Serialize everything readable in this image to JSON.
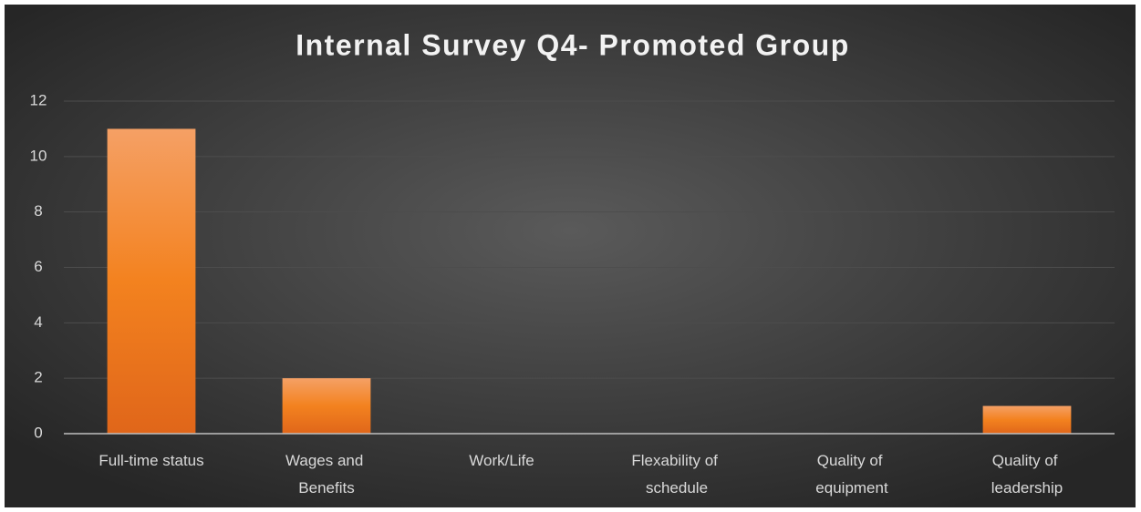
{
  "chart_data": {
    "type": "bar",
    "title": "Internal Survey Q4- Promoted Group",
    "categories": [
      "Full-time status",
      "Wages and Benefits",
      "Work/Life",
      "Flexability of schedule",
      "Quality of equipment",
      "Quality of leadership"
    ],
    "values": [
      11,
      2,
      0,
      0,
      0,
      1
    ],
    "color": "#f07f2a",
    "ylim": [
      0,
      12
    ],
    "yticks": [
      0,
      2,
      4,
      6,
      8,
      10,
      12
    ],
    "grid": true
  }
}
